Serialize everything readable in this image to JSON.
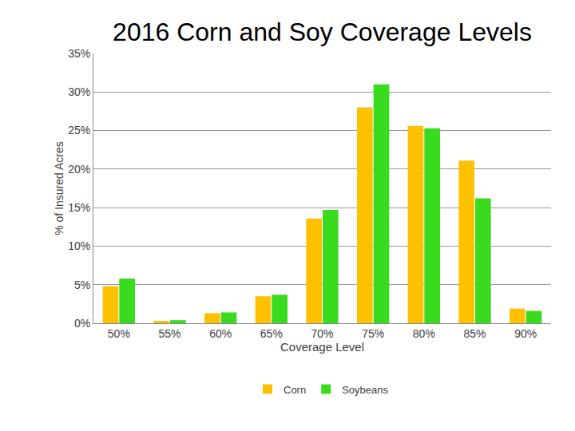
{
  "chart_data": {
    "type": "bar",
    "title": "2016 Corn and Soy Coverage Levels",
    "x_label": "Coverage Level",
    "y_label": "% of Insured Acres",
    "categories": [
      "50%",
      "55%",
      "60%",
      "65%",
      "70%",
      "75%",
      "80%",
      "85%",
      "90%"
    ],
    "series": [
      {
        "name": "Corn",
        "color": "#FFC000",
        "values": [
          4.8,
          0.3,
          1.3,
          3.5,
          13.6,
          28.0,
          25.6,
          21.1,
          1.9
        ]
      },
      {
        "name": "Soybeans",
        "color": "#3ADB1E",
        "values": [
          5.8,
          0.4,
          1.4,
          3.7,
          14.7,
          31.0,
          25.3,
          16.2,
          1.6
        ]
      }
    ],
    "ylim": [
      0,
      35
    ],
    "yticks": [
      {
        "value": 0,
        "label": "0%"
      },
      {
        "value": 5,
        "label": "5%"
      },
      {
        "value": 10,
        "label": "10%"
      },
      {
        "value": 15,
        "label": "15%"
      },
      {
        "value": 20,
        "label": "20%"
      },
      {
        "value": 25,
        "label": "25%"
      },
      {
        "value": 30,
        "label": "30%"
      },
      {
        "value": 35,
        "label": "35%"
      }
    ],
    "grid": true,
    "legend": "bottom"
  }
}
